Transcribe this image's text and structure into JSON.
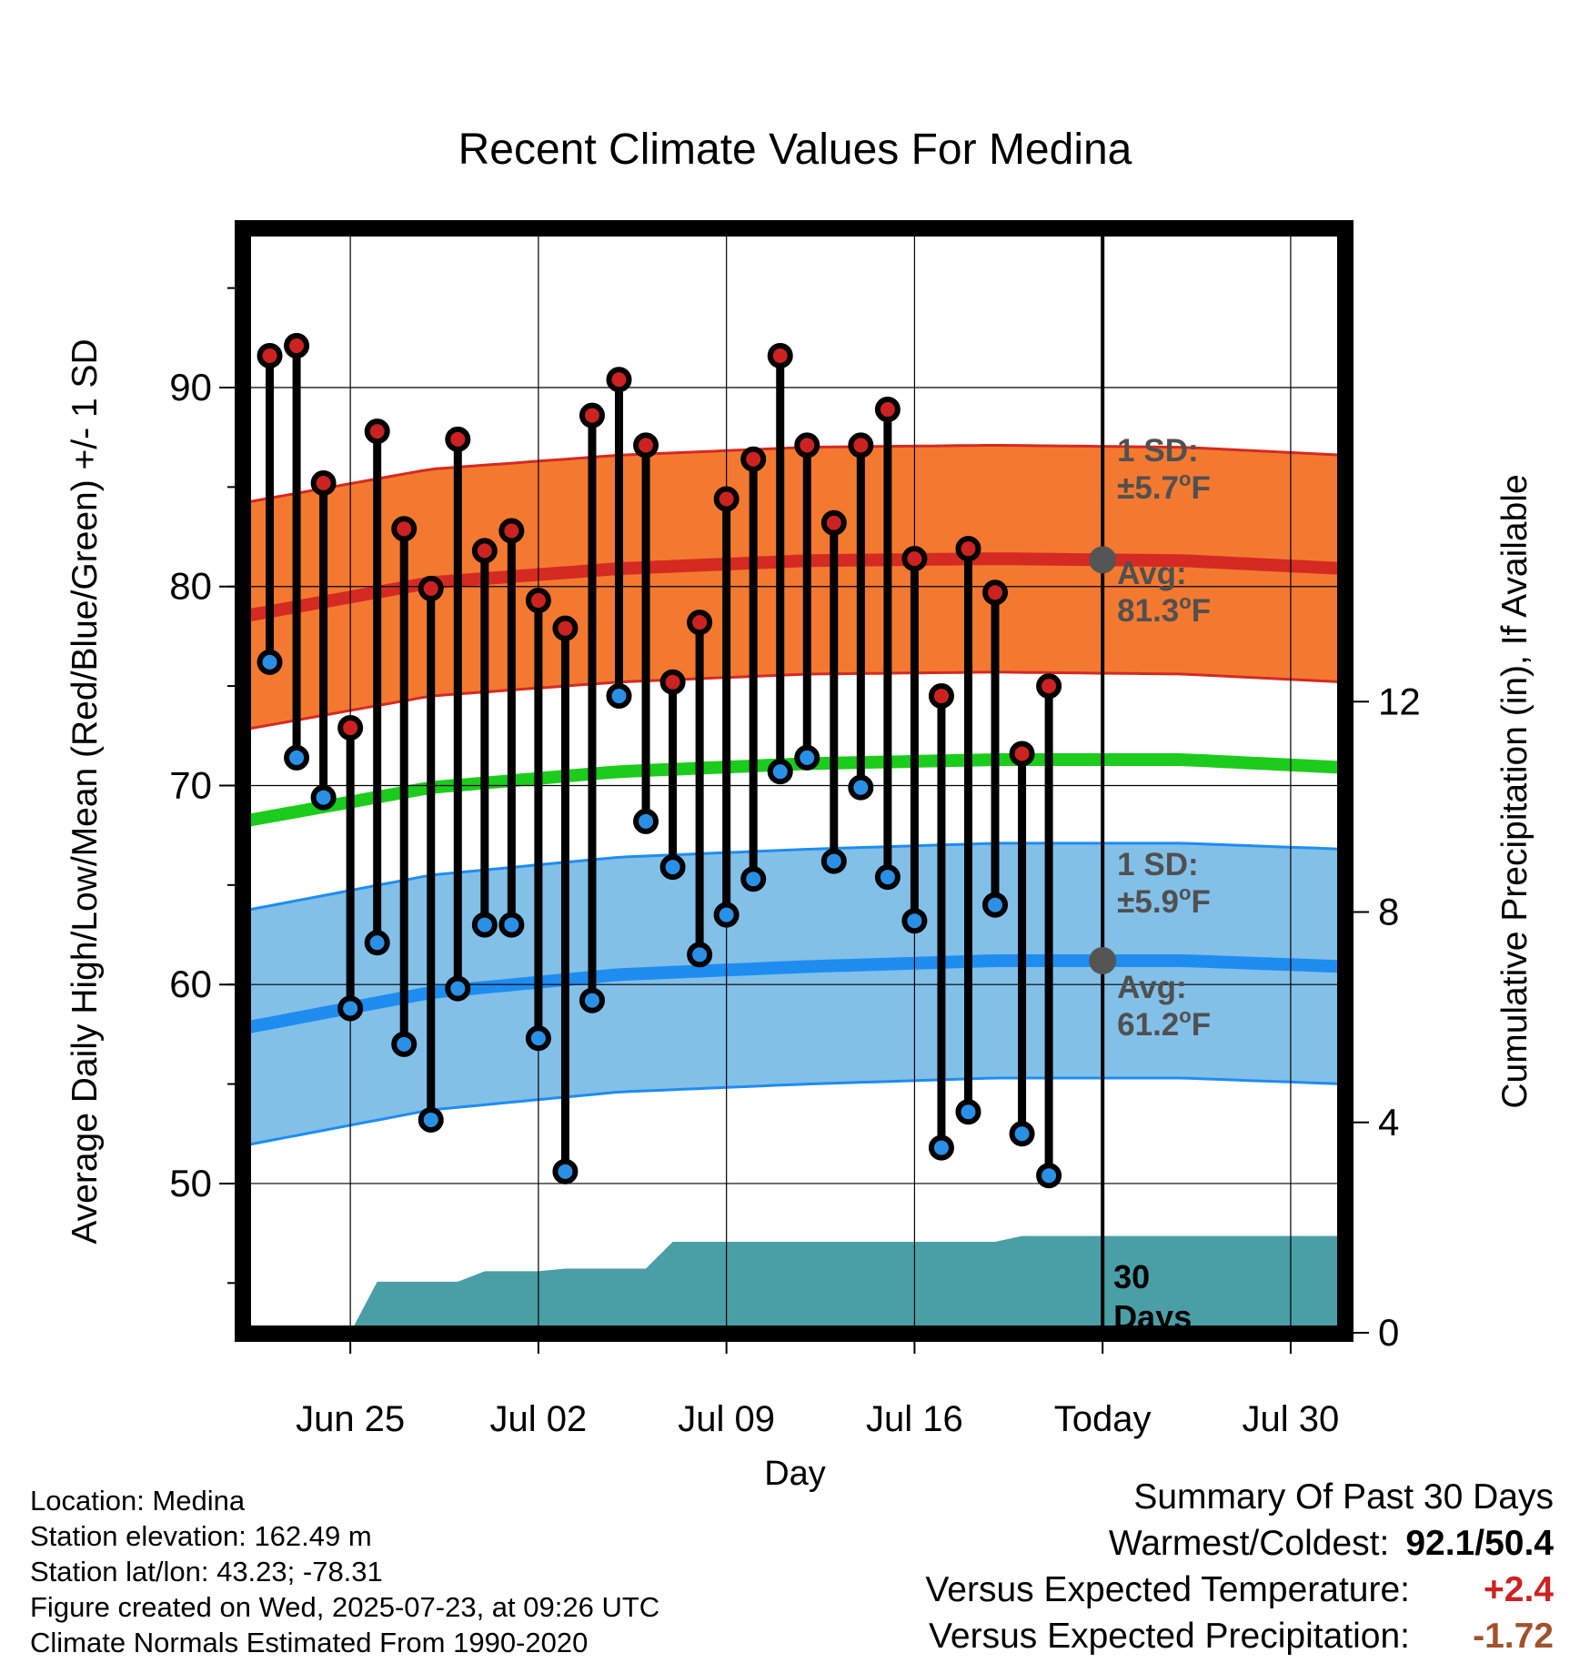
{
  "chart_data": {
    "type": "line",
    "title": "Recent Climate Values For Medina",
    "xlabel": "Day",
    "ylabel": "Average Daily High/Low/Mean (Red/Blue/Green) +/- 1 SD",
    "y2label": "Cumulative Precipitation (in), If Available",
    "xlim": [
      "2025-06-21",
      "2025-08-01"
    ],
    "ylim": [
      42.5,
      98
    ],
    "y2lim": [
      0,
      21
    ],
    "x_ticks": [
      "2025-06-25",
      "2025-07-02",
      "2025-07-09",
      "2025-07-16",
      "2025-07-23",
      "2025-07-30"
    ],
    "x_tick_labels": [
      "Jun 25",
      "Jul 02",
      "Jul 09",
      "Jul 16",
      "Today",
      "Jul 30"
    ],
    "y_ticks": [
      50,
      60,
      70,
      80,
      90
    ],
    "y2_ticks": [
      0,
      4,
      8,
      12
    ],
    "grid": true,
    "today": "2025-07-23",
    "days": [
      "2025-06-22",
      "2025-06-23",
      "2025-06-24",
      "2025-06-25",
      "2025-06-26",
      "2025-06-27",
      "2025-06-28",
      "2025-06-29",
      "2025-06-30",
      "2025-07-01",
      "2025-07-02",
      "2025-07-03",
      "2025-07-04",
      "2025-07-05",
      "2025-07-06",
      "2025-07-07",
      "2025-07-08",
      "2025-07-09",
      "2025-07-10",
      "2025-07-11",
      "2025-07-12",
      "2025-07-13",
      "2025-07-14",
      "2025-07-15",
      "2025-07-16",
      "2025-07-17",
      "2025-07-18",
      "2025-07-19",
      "2025-07-20",
      "2025-07-21",
      "2025-07-22"
    ],
    "daily_high": [
      91.6,
      92.1,
      85.2,
      72.9,
      87.8,
      82.9,
      79.9,
      87.4,
      81.8,
      82.8,
      79.3,
      77.9,
      88.6,
      90.4,
      87.1,
      75.2,
      78.2,
      84.4,
      86.4,
      91.6,
      87.1,
      83.2,
      87.1,
      88.9,
      81.4,
      74.5,
      81.9,
      79.7,
      71.6,
      75.0,
      null
    ],
    "daily_low": [
      76.2,
      71.4,
      69.4,
      58.8,
      62.1,
      57.0,
      53.2,
      59.8,
      63.0,
      63.0,
      57.3,
      50.6,
      59.2,
      74.5,
      68.2,
      65.9,
      61.5,
      63.5,
      65.3,
      70.7,
      71.4,
      66.2,
      69.9,
      65.4,
      63.2,
      51.8,
      53.6,
      64.0,
      52.5,
      50.4,
      null
    ],
    "normal_days": [
      "2025-06-21",
      "2025-06-28",
      "2025-07-05",
      "2025-07-12",
      "2025-07-19",
      "2025-07-26",
      "2025-08-01"
    ],
    "normal_high": [
      78.5,
      80.2,
      80.9,
      81.3,
      81.4,
      81.3,
      80.9
    ],
    "normal_low": [
      57.8,
      59.6,
      60.5,
      60.9,
      61.2,
      61.2,
      60.9
    ],
    "normal_mean": [
      68.2,
      69.9,
      70.7,
      71.1,
      71.3,
      71.3,
      70.9
    ],
    "high_sd": 5.7,
    "low_sd": 5.9,
    "precip_days": [
      "2025-06-21",
      "2025-06-24",
      "2025-06-25",
      "2025-06-26",
      "2025-06-29",
      "2025-06-30",
      "2025-07-02",
      "2025-07-03",
      "2025-07-06",
      "2025-07-07",
      "2025-07-16",
      "2025-07-19",
      "2025-07-20",
      "2025-08-01"
    ],
    "precip_cum": [
      0,
      0,
      0,
      0.97,
      0.97,
      1.17,
      1.17,
      1.22,
      1.22,
      1.73,
      1.73,
      1.73,
      1.84,
      1.84
    ],
    "annotations": {
      "high_sd_label": "1 SD:",
      "high_sd_value": "±5.7",
      "high_avg_label": "Avg:",
      "high_avg_value": "81.3",
      "low_sd_label": "1 SD:",
      "low_sd_value": "±5.9",
      "low_avg_label": "Avg:",
      "low_avg_value": "61.2",
      "degree_unit": "o",
      "temp_unit": "F",
      "days_label_1": "30",
      "days_label_2": "Days"
    },
    "colors": {
      "high_band": "#f47930",
      "high_line": "#d42a22",
      "high_marker": "#cc2222",
      "low_band": "#82c0e8",
      "low_line": "#1f8cf0",
      "low_marker": "#2a90e6",
      "mean_line": "#1ccc1c",
      "precip": "#4a9ea6",
      "annotation": "#505050"
    }
  },
  "info": {
    "location": "Location: Medina",
    "elevation": "Station elevation: 162.49 m",
    "latlon": "Station lat/lon: 43.23; -78.31",
    "created": "Figure created on Wed, 2025-07-23, at 09:26 UTC",
    "normals": "Climate Normals Estimated From 1990-2020"
  },
  "summary": {
    "title": "Summary Of Past 30 Days",
    "warm_cold_label": "Warmest/Coldest:",
    "warm_cold_value": "92.1/50.4",
    "temp_label": "Versus Expected Temperature:",
    "temp_value": "+2.4",
    "temp_color": "#cc2222",
    "precip_label": "Versus Expected Precipitation:",
    "precip_value": "-1.72",
    "precip_color": "#a0522d"
  }
}
